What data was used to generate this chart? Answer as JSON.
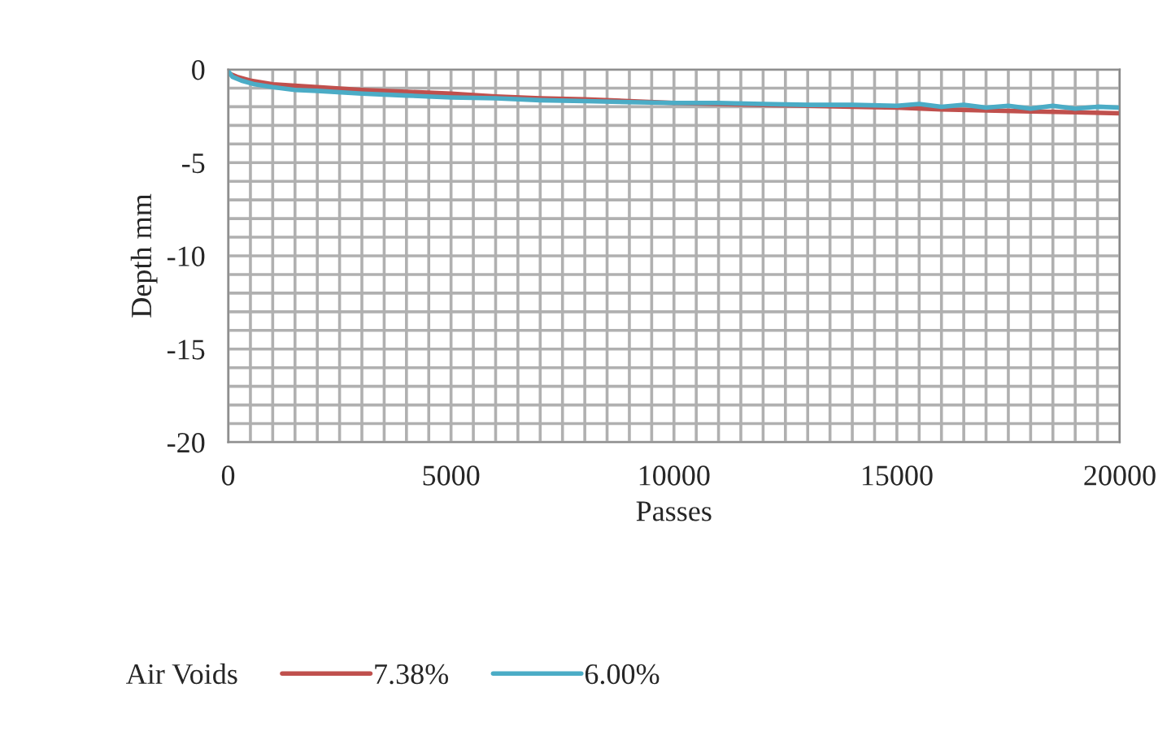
{
  "chart_data": {
    "type": "line",
    "xlabel": "Passes",
    "ylabel": "Depth mm",
    "legend_title": "Air Voids",
    "legend": "bottom",
    "grid": true,
    "xlim": [
      0,
      20000
    ],
    "xticks": [
      0,
      5000,
      10000,
      15000,
      20000
    ],
    "ylim": [
      -20,
      0
    ],
    "yticks": [
      -20,
      -15,
      -10,
      -5,
      0
    ],
    "series": [
      {
        "name": "7.38%",
        "color": "#c0504d",
        "x": [
          0,
          200,
          500,
          1000,
          2000,
          3000,
          4000,
          5000,
          6000,
          7000,
          8000,
          9000,
          10000,
          11000,
          12000,
          13000,
          14000,
          15000,
          16000,
          17000,
          18000,
          19000,
          20000
        ],
        "values": [
          -0.2,
          -0.4,
          -0.6,
          -0.8,
          -0.95,
          -1.1,
          -1.2,
          -1.3,
          -1.45,
          -1.55,
          -1.6,
          -1.7,
          -1.8,
          -1.85,
          -1.9,
          -1.95,
          -2.0,
          -2.05,
          -2.15,
          -2.2,
          -2.25,
          -2.3,
          -2.35
        ]
      },
      {
        "name": "6.00%",
        "color": "#4bacc6",
        "x": [
          0,
          100,
          300,
          600,
          1000,
          1500,
          2000,
          3000,
          4000,
          5000,
          6000,
          7000,
          8000,
          9000,
          10000,
          11000,
          12000,
          13000,
          14000,
          15000,
          15500,
          16000,
          16500,
          17000,
          17500,
          18000,
          18500,
          19000,
          19500,
          20000
        ],
        "values": [
          -0.1,
          -0.4,
          -0.6,
          -0.8,
          -0.95,
          -1.1,
          -1.15,
          -1.3,
          -1.4,
          -1.5,
          -1.55,
          -1.65,
          -1.7,
          -1.75,
          -1.8,
          -1.8,
          -1.85,
          -1.9,
          -1.9,
          -1.95,
          -1.85,
          -2.0,
          -1.9,
          -2.05,
          -1.95,
          -2.1,
          -1.95,
          -2.1,
          -2.0,
          -2.05
        ]
      }
    ]
  }
}
